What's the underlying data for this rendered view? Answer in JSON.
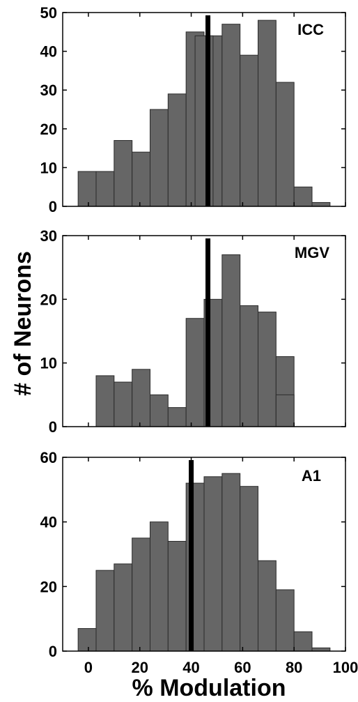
{
  "figure": {
    "ylabel": "# of Neurons",
    "xlabel": "% Modulation",
    "bar_color": "#666666",
    "edge_color": "#2b2b2b",
    "marker_color": "#000000"
  },
  "chart_data": [
    {
      "type": "bar",
      "panel_label": "ICC",
      "bin_width": 7,
      "bin_starts": [
        -4,
        3,
        10,
        17,
        24,
        31,
        38,
        45,
        52,
        59,
        66,
        73,
        80,
        87
      ],
      "values": [
        9,
        9,
        17,
        14,
        25,
        29,
        45,
        44,
        47,
        39,
        48,
        32,
        5,
        1
      ],
      "extra_bar": {
        "start": 41.5,
        "width": 7,
        "value": 44
      },
      "median_marker": 46.5,
      "ylim": [
        0,
        50
      ],
      "yticks": [
        0,
        10,
        20,
        30,
        40,
        50
      ],
      "xlim": [
        -10,
        100
      ]
    },
    {
      "type": "bar",
      "panel_label": "MGV",
      "bin_width": 7,
      "bin_starts": [
        3,
        10,
        17,
        24,
        31,
        38,
        45,
        52,
        59,
        66,
        73
      ],
      "values": [
        8,
        7,
        9,
        5,
        3,
        17,
        20,
        27,
        19,
        18,
        11
      ],
      "extra_bar": {
        "start": 73,
        "width": 7,
        "value": 5
      },
      "median_marker": 46.5,
      "ylim": [
        0,
        30
      ],
      "yticks": [
        0,
        10,
        20,
        30
      ],
      "xlim": [
        -10,
        100
      ]
    },
    {
      "type": "bar",
      "panel_label": "A1",
      "bin_width": 7,
      "bin_starts": [
        -4,
        3,
        10,
        17,
        24,
        31,
        38,
        45,
        52,
        59,
        66,
        73,
        80,
        87
      ],
      "values": [
        7,
        25,
        27,
        35,
        40,
        34,
        52,
        54,
        55,
        51,
        28,
        19,
        6,
        1
      ],
      "median_marker": 40,
      "ylim": [
        0,
        60
      ],
      "yticks": [
        0,
        20,
        40,
        60
      ],
      "xlim": [
        -10,
        100
      ],
      "xticks": [
        0,
        20,
        40,
        60,
        80,
        100
      ]
    }
  ]
}
